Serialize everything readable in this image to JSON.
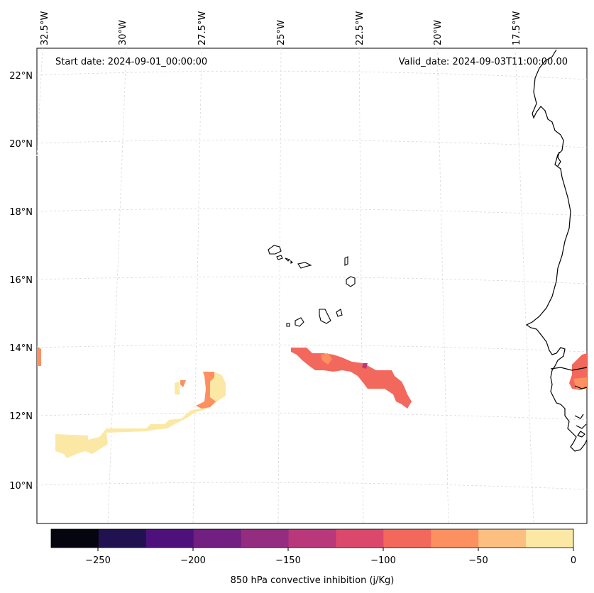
{
  "header": {
    "start_date": "Start date: 2024-09-01_00:00:00",
    "valid_date": "Valid_date: 2024-09-03T11:00:00.00"
  },
  "axes": {
    "lon_labels": [
      "32.5°W",
      "30°W",
      "27.5°W",
      "25°W",
      "22.5°W",
      "20°W",
      "17.5°W"
    ],
    "lat_labels": [
      "22°N",
      "20°N",
      "18°N",
      "16°N",
      "14°N",
      "12°N",
      "10°N"
    ]
  },
  "colorbar": {
    "label": "850 hPa convective inhibition (j/Kg)",
    "ticks": [
      "−250",
      "−200",
      "−150",
      "−100",
      "−50",
      "0"
    ],
    "colors": [
      "#05050f",
      "#221150",
      "#4e117c",
      "#711f81",
      "#942c80",
      "#b9387a",
      "#dc486b",
      "#f3685c",
      "#fc9060",
      "#fdbf80",
      "#fce8a5"
    ]
  },
  "legend_colors": {
    "land": "#000000",
    "grid": "#cccccc"
  }
}
